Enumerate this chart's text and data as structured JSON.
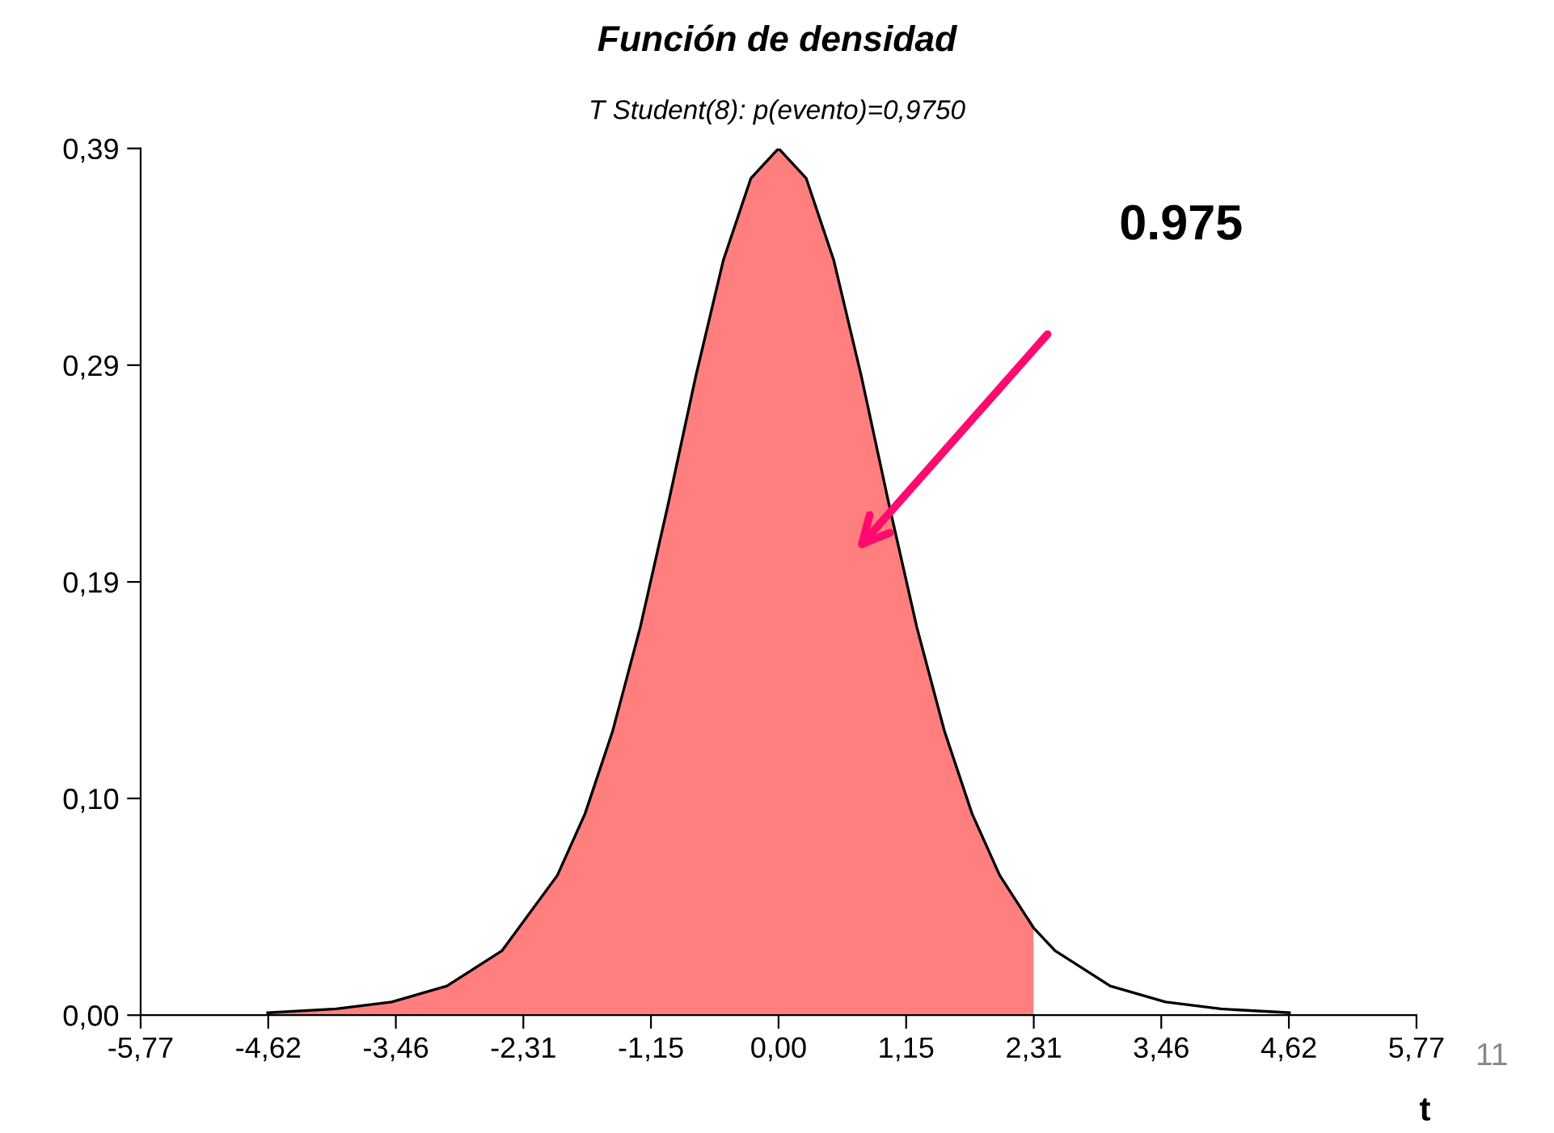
{
  "chart_data": {
    "type": "area",
    "title": "Función de densidad",
    "subtitle": "T Student(8): p(evento)=0,9750",
    "xlabel": "t",
    "series": [
      {
        "color": "#ff7f7f",
        "x": [
          -4.62,
          -4,
          -3.5,
          -3,
          -2.5,
          -2,
          -1.75,
          -1.5,
          -1.25,
          -1,
          -0.75,
          -0.5,
          -0.25,
          0,
          0.25,
          0.5,
          0.75,
          1,
          1.25,
          1.5,
          1.75,
          2,
          2.306
        ],
        "values": [
          0.0011,
          0.0028,
          0.0059,
          0.013,
          0.0288,
          0.0624,
          0.0899,
          0.1268,
          0.1732,
          0.2276,
          0.2848,
          0.3367,
          0.3734,
          0.3867,
          0.3734,
          0.3367,
          0.2848,
          0.2276,
          0.1732,
          0.1268,
          0.0899,
          0.0624,
          0.039
        ]
      },
      {
        "type": "line",
        "color": "#000000",
        "x": [
          -4.62,
          -4,
          -3.5,
          -3,
          -2.5,
          -2,
          -1.75,
          -1.5,
          -1.25,
          -1,
          -0.75,
          -0.5,
          -0.25,
          0,
          0.25,
          0.5,
          0.75,
          1,
          1.25,
          1.5,
          1.75,
          2,
          2.306,
          2.5,
          3,
          3.5,
          4,
          4.62
        ],
        "values": [
          0.0011,
          0.0028,
          0.0059,
          0.013,
          0.0288,
          0.0624,
          0.0899,
          0.1268,
          0.1732,
          0.2276,
          0.2848,
          0.3367,
          0.3734,
          0.3867,
          0.3734,
          0.3367,
          0.2848,
          0.2276,
          0.1732,
          0.1268,
          0.0899,
          0.0624,
          0.039,
          0.0288,
          0.013,
          0.0059,
          0.0028,
          0.0011
        ]
      }
    ],
    "xlim": [
      -5.769,
      5.769
    ],
    "xticks": [
      {
        "value": -5.769,
        "label": "-5,77"
      },
      {
        "value": -4.615,
        "label": "-4,62"
      },
      {
        "value": -3.461,
        "label": "-3,46"
      },
      {
        "value": -2.308,
        "label": "-2,31"
      },
      {
        "value": -1.154,
        "label": "-1,15"
      },
      {
        "value": 0,
        "label": "0,00"
      },
      {
        "value": 1.154,
        "label": "1,15"
      },
      {
        "value": 2.308,
        "label": "2,31"
      },
      {
        "value": 3.461,
        "label": "3,46"
      },
      {
        "value": 4.615,
        "label": "4,62"
      },
      {
        "value": 5.769,
        "label": "5,77"
      }
    ],
    "ylim": [
      0,
      0.3867
    ],
    "yticks": [
      {
        "value": 0,
        "label": "0,00"
      },
      {
        "value": 0.0967,
        "label": "0,10"
      },
      {
        "value": 0.1933,
        "label": "0,19"
      },
      {
        "value": 0.29,
        "label": "0,29"
      },
      {
        "value": 0.3867,
        "label": "0,39"
      }
    ],
    "annotations": [
      "0.975",
      "11"
    ],
    "grid": false,
    "legend": false
  }
}
